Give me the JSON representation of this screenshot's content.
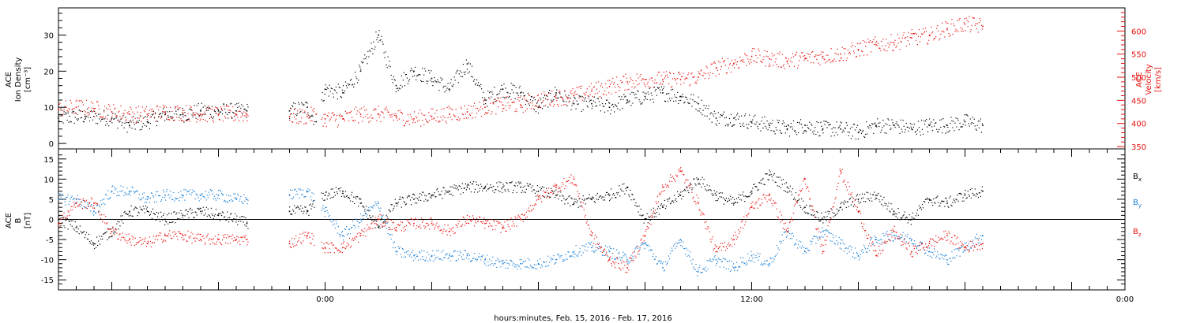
{
  "figure": {
    "xlabel": "hours:minutes, Feb. 15, 2016 - Feb. 17, 2016",
    "xlim_hours": [
      -15,
      45
    ],
    "xticks": [
      {
        "hour": 0,
        "label": "0:00"
      },
      {
        "hour": 24,
        "label": "12:00"
      },
      {
        "hour": 48,
        "label": "0:00"
      }
    ]
  },
  "colors": {
    "black": "#000000",
    "red": "#e8120f",
    "blue": "#1a7fd6"
  },
  "chart_data": [
    {
      "type": "scatter",
      "panel": "density-velocity",
      "ylabel": {
        "line1": "ACE",
        "line2": "Ion Density",
        "line3": "[cm⁻³]"
      },
      "ylabel_right": {
        "line1": "ACE",
        "line2": "Velocity",
        "line3": "[km/s]"
      },
      "ylim": [
        -1.5,
        37.5
      ],
      "yticks": [
        "0",
        "10",
        "20",
        "30"
      ],
      "ylim_right": [
        345,
        650
      ],
      "yticks_right": [
        "350",
        "400",
        "450",
        "500",
        "550",
        "600"
      ],
      "grid": false,
      "data_gaps_hours": [
        [
          -4.3,
          -2.0
        ],
        [
          -0.6,
          -0.2
        ]
      ],
      "series": [
        {
          "color": "black",
          "axis": "left",
          "x": [
            -15,
            -13.5,
            -12,
            -11,
            -10,
            -9,
            -8,
            -7,
            -6,
            -5,
            -4.4,
            -2,
            -1,
            -0.5,
            0,
            1,
            2,
            3,
            4,
            5,
            6,
            7,
            8,
            9,
            10,
            11,
            12,
            13,
            14,
            15,
            16,
            17,
            18,
            19,
            20,
            21,
            22,
            23,
            24,
            25,
            26,
            27,
            28,
            29,
            30,
            31,
            32,
            33,
            34,
            35,
            36,
            37
          ],
          "y": [
            7,
            7.5,
            7,
            5,
            6,
            8,
            8,
            9,
            9,
            9,
            9,
            9,
            10,
            6,
            15,
            14,
            20,
            30,
            16,
            20,
            18,
            15,
            22,
            12,
            15,
            14,
            10,
            14,
            11,
            11,
            10,
            12,
            13,
            14,
            13,
            11,
            7,
            7,
            6,
            5,
            4,
            5,
            4,
            4,
            3,
            5,
            5,
            4,
            5,
            5,
            6,
            5
          ]
        },
        {
          "color": "red",
          "axis": "right",
          "x": [
            -15,
            -14,
            -13,
            -12,
            -11,
            -10,
            -9,
            -8,
            -7,
            -6,
            -5,
            -4.4,
            -2,
            -1,
            -0.5,
            0,
            1,
            2,
            3,
            4,
            5,
            6,
            7,
            8,
            9,
            10,
            11,
            12,
            13,
            14,
            15,
            16,
            17,
            18,
            19,
            20,
            21,
            22,
            23,
            24,
            25,
            26,
            27,
            28,
            29,
            30,
            31,
            32,
            33,
            34,
            35,
            36,
            37
          ],
          "y": [
            430,
            435,
            432,
            425,
            420,
            420,
            425,
            423,
            420,
            420,
            420,
            420,
            415,
            415,
            420,
            410,
            410,
            420,
            420,
            415,
            410,
            415,
            420,
            425,
            435,
            440,
            440,
            450,
            455,
            460,
            470,
            480,
            490,
            495,
            495,
            495,
            500,
            520,
            530,
            545,
            540,
            535,
            540,
            545,
            550,
            560,
            570,
            575,
            585,
            590,
            605,
            615,
            610
          ]
        }
      ]
    },
    {
      "type": "scatter",
      "panel": "magnetic-field",
      "ylabel": {
        "line1": "ACE",
        "line2": "B",
        "line3": "[nT]"
      },
      "ylim": [
        -17.5,
        17.5
      ],
      "yticks": [
        "15",
        "10",
        "5",
        "0",
        "-5",
        "-10",
        "-15"
      ],
      "reference_line": 0,
      "grid": false,
      "data_gaps_hours": [
        [
          -4.3,
          -2.0
        ],
        [
          -0.6,
          -0.2
        ]
      ],
      "series": [
        {
          "name": "Bx",
          "color": "black",
          "x": [
            -15,
            -14,
            -13,
            -12,
            -11,
            -10,
            -9,
            -8,
            -7,
            -6,
            -5,
            -4.4,
            -2,
            -1,
            0,
            1,
            2,
            3,
            4,
            5,
            6,
            7,
            8,
            9,
            10,
            11,
            12,
            13,
            14,
            15,
            16,
            17,
            18,
            19,
            20,
            21,
            22,
            23,
            24,
            25,
            26,
            27,
            28,
            29,
            30,
            31,
            32,
            33,
            34,
            35,
            36,
            37
          ],
          "y": [
            0,
            -2,
            -6,
            -3,
            2,
            2,
            0,
            1,
            2,
            1,
            0,
            -1,
            2,
            2,
            6,
            7,
            4,
            -2,
            4,
            5,
            6,
            7,
            8,
            8,
            8,
            8,
            7,
            6,
            4,
            5,
            6,
            8,
            0,
            3,
            6,
            10,
            6,
            4,
            7,
            11,
            8,
            3,
            0,
            3,
            5,
            6,
            2,
            0,
            5,
            4,
            6,
            7
          ]
        },
        {
          "name": "By",
          "color": "blue",
          "x": [
            -15,
            -14,
            -13,
            -12,
            -11,
            -10,
            -9,
            -8,
            -7,
            -6,
            -5,
            -4.4,
            -2,
            -1,
            0,
            1,
            2,
            3,
            4,
            5,
            6,
            7,
            8,
            9,
            10,
            11,
            12,
            13,
            14,
            15,
            16,
            17,
            18,
            19,
            20,
            21,
            22,
            23,
            24,
            25,
            26,
            27,
            28,
            29,
            30,
            31,
            32,
            33,
            34,
            35,
            36,
            37
          ],
          "y": [
            5,
            5,
            2,
            7,
            7,
            5,
            6,
            6,
            6,
            6,
            5,
            5,
            6,
            7,
            2,
            -4,
            0,
            4,
            -8,
            -9,
            -9,
            -9,
            -9,
            -10,
            -11,
            -11,
            -11,
            -10,
            -8,
            -7,
            -8,
            -10,
            -6,
            -12,
            -5,
            -13,
            -10,
            -12,
            -9,
            -11,
            -3,
            -8,
            -3,
            -6,
            -9,
            -5,
            -4,
            -5,
            -8,
            -10,
            -7,
            -4
          ]
        },
        {
          "name": "Bz",
          "color": "red",
          "x": [
            -15,
            -14,
            -13,
            -12,
            -11,
            -10,
            -9,
            -8,
            -7,
            -6,
            -5,
            -4.4,
            -2,
            -1,
            0,
            1,
            2,
            3,
            4,
            5,
            6,
            7,
            8,
            9,
            10,
            11,
            12,
            13,
            14,
            15,
            16,
            17,
            18,
            19,
            20,
            21,
            22,
            23,
            24,
            25,
            26,
            27,
            28,
            29,
            30,
            31,
            32,
            33,
            34,
            35,
            36,
            37
          ],
          "y": [
            -1,
            4,
            4,
            -3,
            -5,
            -6,
            -4,
            -4,
            -5,
            -5,
            -5,
            -5,
            -6,
            -4,
            -7,
            -7,
            -4,
            0,
            -2,
            -1,
            -1,
            -3,
            0,
            -1,
            -2,
            0,
            5,
            8,
            10,
            -4,
            -10,
            -12,
            -4,
            8,
            12,
            4,
            -8,
            -5,
            3,
            6,
            -3,
            10,
            -8,
            12,
            2,
            -9,
            -3,
            -8,
            -6,
            -4,
            -7,
            -6
          ]
        }
      ],
      "legend": [
        {
          "key": "Bx",
          "base": "B",
          "sub": "x",
          "color": "black"
        },
        {
          "key": "By",
          "base": "B",
          "sub": "y",
          "color": "blue"
        },
        {
          "key": "Bz",
          "base": "B",
          "sub": "z",
          "color": "red"
        }
      ],
      "legend_placement": "right"
    }
  ]
}
